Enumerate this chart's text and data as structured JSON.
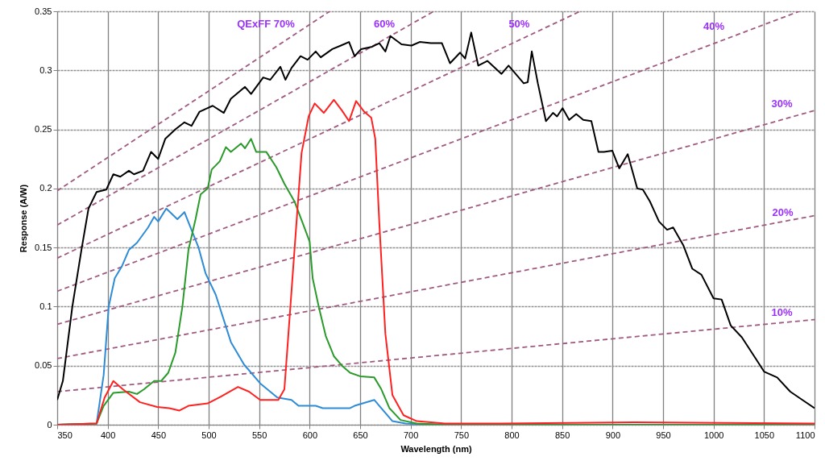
{
  "chart_data": {
    "type": "line",
    "xlabel": "Wavelength (nm)",
    "ylabel": "Response (A/W)",
    "xlim": [
      350,
      1100
    ],
    "ylim": [
      0,
      0.35
    ],
    "xticks": [
      350,
      400,
      450,
      500,
      550,
      600,
      650,
      700,
      750,
      800,
      850,
      900,
      950,
      1000,
      1050,
      1100
    ],
    "yticks": [
      0,
      0.05,
      0.1,
      0.15,
      0.2,
      0.25,
      0.3,
      0.35
    ],
    "grid": true,
    "line_style": "solid",
    "series": [
      {
        "line_style": "dashed",
        "color": "#a05a80",
        "x": [
          350,
          620
        ],
        "values": [
          0.198,
          0.35
        ]
      },
      {
        "line_style": "dashed",
        "color": "#a05a80",
        "x": [
          350,
          723
        ],
        "values": [
          0.169,
          0.35
        ]
      },
      {
        "line_style": "dashed",
        "color": "#a05a80",
        "x": [
          350,
          868
        ],
        "values": [
          0.141,
          0.35
        ]
      },
      {
        "line_style": "dashed",
        "color": "#a05a80",
        "x": [
          350,
          1085
        ],
        "values": [
          0.113,
          0.35
        ]
      },
      {
        "line_style": "dashed",
        "color": "#a05a80",
        "x": [
          350,
          1100
        ],
        "values": [
          0.085,
          0.266
        ]
      },
      {
        "line_style": "dashed",
        "color": "#a05a80",
        "x": [
          350,
          1100
        ],
        "values": [
          0.056,
          0.177
        ]
      },
      {
        "line_style": "dashed",
        "color": "#a05a80",
        "x": [
          350,
          1100
        ],
        "values": [
          0.028,
          0.089
        ]
      },
      {
        "color": "#000000",
        "x": [
          350,
          355.6,
          365,
          374,
          381,
          389,
          398.6,
          405.6,
          412.5,
          421,
          426,
          435,
          443,
          450,
          457,
          467,
          476,
          483,
          491,
          504,
          515,
          522,
          536,
          542,
          554,
          561,
          571,
          576,
          582,
          591,
          598,
          606,
          611,
          622.5,
          631,
          639,
          644.5,
          651,
          662,
          669,
          675,
          680,
          691,
          701,
          709,
          720,
          731,
          739,
          749,
          754,
          760,
          767,
          776,
          790,
          797,
          812,
          816,
          820,
          826,
          834,
          841,
          845,
          850.5,
          857,
          864,
          871,
          879,
          886,
          891.5,
          899.7,
          906.6,
          915,
          924.4,
          930,
          937,
          946,
          954,
          960,
          970,
          979,
          988,
          1000,
          1008,
          1017,
          1028,
          1041,
          1050,
          1063,
          1076,
          1088,
          1100
        ],
        "values": [
          0.021,
          0.037,
          0.1,
          0.148,
          0.183,
          0.197,
          0.199,
          0.212,
          0.21,
          0.215,
          0.212,
          0.215,
          0.231,
          0.225,
          0.242,
          0.25,
          0.256,
          0.253,
          0.265,
          0.27,
          0.264,
          0.276,
          0.286,
          0.28,
          0.294,
          0.292,
          0.303,
          0.292,
          0.302,
          0.312,
          0.309,
          0.316,
          0.311,
          0.318,
          0.321,
          0.324,
          0.312,
          0.318,
          0.32,
          0.323,
          0.316,
          0.329,
          0.322,
          0.321,
          0.324,
          0.323,
          0.323,
          0.306,
          0.315,
          0.31,
          0.332,
          0.304,
          0.308,
          0.297,
          0.304,
          0.289,
          0.29,
          0.316,
          0.289,
          0.257,
          0.264,
          0.261,
          0.268,
          0.258,
          0.263,
          0.258,
          0.257,
          0.231,
          0.231,
          0.232,
          0.217,
          0.229,
          0.2,
          0.199,
          0.189,
          0.172,
          0.165,
          0.167,
          0.152,
          0.132,
          0.127,
          0.107,
          0.106,
          0.084,
          0.074,
          0.057,
          0.045,
          0.04,
          0.028,
          0.021,
          0.014
        ]
      },
      {
        "color": "#2e8bd6",
        "x": [
          350,
          389,
          396,
          401,
          407,
          414,
          421,
          429,
          440,
          446,
          450,
          458,
          469,
          476,
          482,
          490,
          497,
          507,
          522,
          535,
          551,
          568,
          582,
          589,
          606,
          613,
          629,
          640,
          644.5,
          664,
          669,
          682,
          695,
          734,
          1100
        ],
        "values": [
          0,
          0.001,
          0.042,
          0.1,
          0.124,
          0.134,
          0.148,
          0.154,
          0.167,
          0.176,
          0.172,
          0.183,
          0.174,
          0.18,
          0.167,
          0.15,
          0.128,
          0.11,
          0.07,
          0.051,
          0.035,
          0.023,
          0.021,
          0.016,
          0.016,
          0.014,
          0.014,
          0.014,
          0.016,
          0.021,
          0.016,
          0.003,
          0.001,
          0,
          0
        ]
      },
      {
        "color": "#2a9a2a",
        "x": [
          350,
          389,
          396,
          405.6,
          421,
          429,
          436,
          446,
          453,
          460,
          467,
          474,
          480,
          487,
          492,
          499,
          503,
          511,
          517,
          522,
          532,
          536,
          542,
          547,
          557,
          567,
          575,
          585,
          593,
          600,
          603,
          609,
          616,
          624,
          632,
          640,
          650,
          664,
          671,
          679,
          690,
          706,
          734,
          1100
        ],
        "values": [
          0,
          0.001,
          0.016,
          0.027,
          0.028,
          0.026,
          0.03,
          0.037,
          0.037,
          0.044,
          0.061,
          0.1,
          0.148,
          0.174,
          0.195,
          0.2,
          0.216,
          0.223,
          0.235,
          0.231,
          0.238,
          0.234,
          0.242,
          0.231,
          0.231,
          0.218,
          0.204,
          0.189,
          0.171,
          0.155,
          0.124,
          0.1,
          0.075,
          0.058,
          0.05,
          0.044,
          0.041,
          0.04,
          0.03,
          0.014,
          0.004,
          0.001,
          0,
          0
        ]
      },
      {
        "color": "#ff2020",
        "x": [
          350,
          389,
          397,
          405.6,
          415,
          432,
          449,
          461,
          471,
          480,
          499,
          512.5,
          529,
          540,
          551,
          569,
          575,
          579,
          585,
          592,
          599,
          605,
          614,
          624,
          632,
          639,
          646,
          654,
          661,
          665,
          669,
          675,
          682,
          693,
          706,
          734,
          789,
          921,
          1100
        ],
        "values": [
          0,
          0.001,
          0.023,
          0.037,
          0.03,
          0.019,
          0.015,
          0.014,
          0.012,
          0.016,
          0.018,
          0.024,
          0.032,
          0.028,
          0.021,
          0.021,
          0.03,
          0.077,
          0.148,
          0.23,
          0.261,
          0.272,
          0.264,
          0.275,
          0.266,
          0.257,
          0.274,
          0.265,
          0.26,
          0.242,
          0.171,
          0.077,
          0.025,
          0.008,
          0.003,
          0.001,
          0.001,
          0.002,
          0.001
        ]
      }
    ],
    "annotations": [
      "QExFF 70%",
      "60%",
      "50%",
      "40%",
      "30%",
      "20%",
      "10%"
    ]
  }
}
